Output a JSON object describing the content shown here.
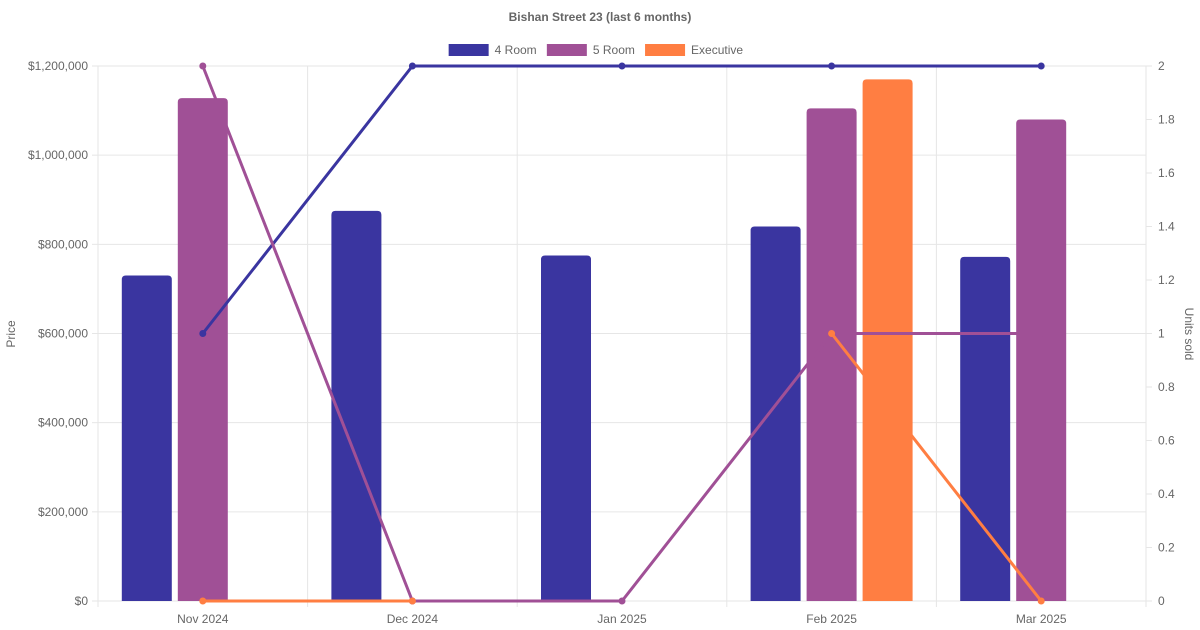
{
  "chart_data": {
    "type": "bar",
    "title": "Bishan Street 23 (last 6 months)",
    "categories": [
      "Nov 2024",
      "Dec 2024",
      "Jan 2025",
      "Feb 2025",
      "Mar 2025"
    ],
    "y_left": {
      "label": "Price",
      "ylim": [
        0,
        1200000
      ],
      "ticks": [
        0,
        200000,
        400000,
        600000,
        800000,
        1000000,
        1200000
      ],
      "tick_labels": [
        "$0",
        "$200,000",
        "$400,000",
        "$600,000",
        "$800,000",
        "$1,000,000",
        "$1,200,000"
      ]
    },
    "y_right": {
      "label": "Units sold",
      "ylim": [
        0,
        2
      ],
      "ticks": [
        0,
        0.2,
        0.4,
        0.6,
        0.8,
        1,
        1.2,
        1.4,
        1.6,
        1.8,
        2
      ],
      "tick_labels": [
        "0",
        "0.2",
        "0.4",
        "0.6",
        "0.8",
        "1",
        "1.2",
        "1.4",
        "1.6",
        "1.8",
        "2"
      ]
    },
    "series": [
      {
        "name": "4 Room",
        "color": "#3a35a0",
        "price": [
          730000,
          875000,
          775000,
          840000,
          772000
        ],
        "units": [
          1,
          2,
          2,
          2,
          2
        ]
      },
      {
        "name": "5 Room",
        "color": "#a05096",
        "price": [
          1128000,
          null,
          null,
          1105000,
          1080000
        ],
        "units": [
          2,
          0,
          0,
          1,
          1
        ]
      },
      {
        "name": "Executive",
        "color": "#ff7e42",
        "price": [
          null,
          null,
          null,
          1170000,
          null
        ],
        "units": [
          0,
          0,
          null,
          1,
          0
        ]
      }
    ],
    "legend": "top",
    "grid": true
  }
}
